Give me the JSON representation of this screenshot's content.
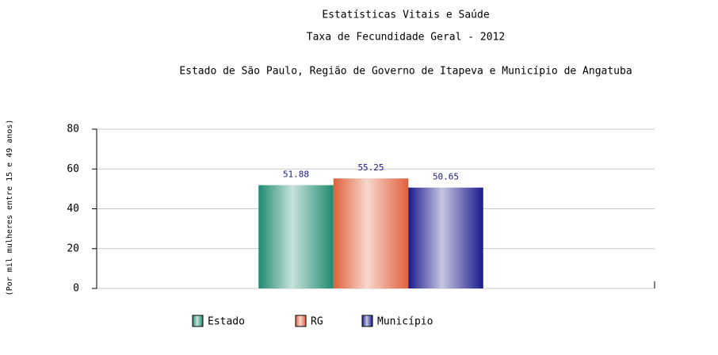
{
  "chart_data": {
    "type": "bar",
    "title": "Estatísticas Vitais e Saúde",
    "subtitle": "Taxa de Fecundidade Geral - 2012",
    "annotation": "Estado de São Paulo, Região de Governo de Itapeva e Município de Angatuba",
    "y_label": "(Por mil mulheres entre 15 e 49 anos)",
    "categories": [
      null
    ],
    "series": [
      {
        "name": "Estado",
        "color": "#1f8a70",
        "values": [
          51.88
        ]
      },
      {
        "name": "RG",
        "color": "#e0603a",
        "values": [
          55.25
        ]
      },
      {
        "name": "Município",
        "color": "#1a1a8c",
        "values": [
          50.65
        ]
      }
    ],
    "ylim": [
      0,
      80
    ],
    "yticks": [
      0,
      20,
      40,
      60,
      80
    ],
    "grid": true
  }
}
